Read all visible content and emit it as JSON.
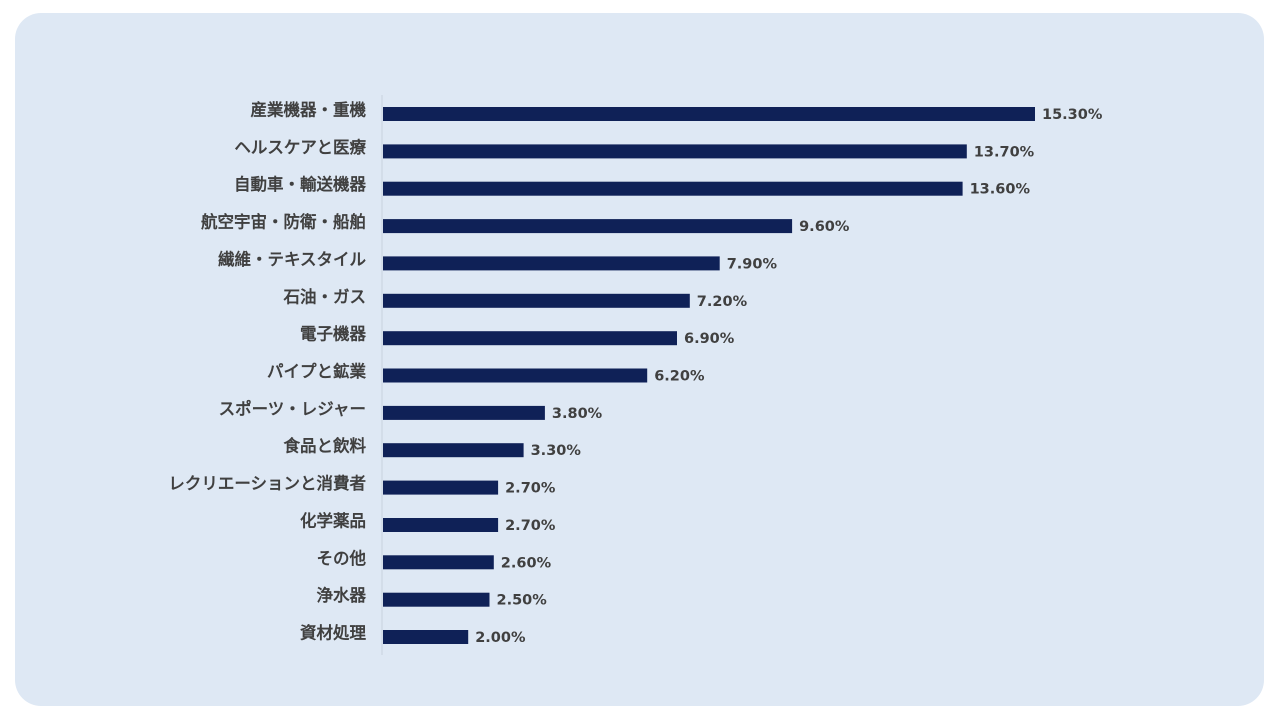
{
  "chart_data": {
    "type": "bar",
    "orientation": "horizontal",
    "categories": [
      "産業機器・重機",
      "ヘルスケアと医療",
      "自動車・輸送機器",
      "航空宇宙・防衛・船舶",
      "繊維・テキスタイル",
      "石油・ガス",
      "電子機器",
      "パイプと鉱業",
      "スポーツ・レジャー",
      "食品と飲料",
      "レクリエーションと消費者",
      "化学薬品",
      "その他",
      "浄水器",
      "資材処理"
    ],
    "values": [
      15.3,
      13.7,
      13.6,
      9.6,
      7.9,
      7.2,
      6.9,
      6.2,
      3.8,
      3.3,
      2.7,
      2.7,
      2.6,
      2.5,
      2.0
    ],
    "value_labels": [
      "15.30%",
      "13.70%",
      "13.60%",
      "9.60%",
      "7.90%",
      "7.20%",
      "6.90%",
      "6.20%",
      "3.80%",
      "3.30%",
      "2.70%",
      "2.70%",
      "2.60%",
      "2.50%",
      "2.00%"
    ],
    "unit": "%",
    "xlim": [
      0,
      15.3
    ],
    "grid": false,
    "legend": "none",
    "bar_color": "#0f2157",
    "background_color": "#dee8f4"
  }
}
